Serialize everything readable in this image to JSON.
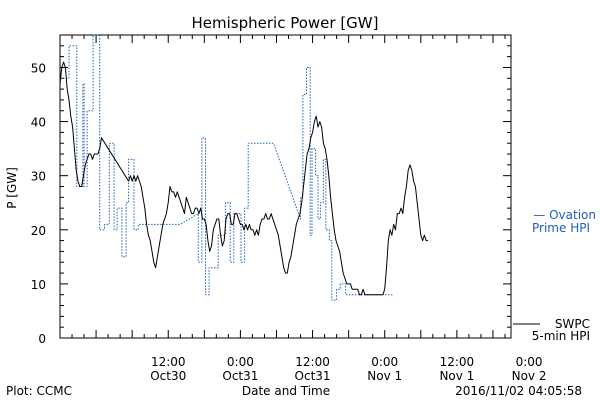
{
  "chart_data": {
    "type": "line",
    "title": "Hemispheric Power [GW]",
    "xlabel": "Date and Time",
    "ylabel": "P [GW]",
    "ylim": [
      0,
      56
    ],
    "yticks": [
      0,
      10,
      20,
      30,
      40,
      50
    ],
    "xlim": [
      0,
      75
    ],
    "xlim_note": "hours from 2016-10-29 18:00",
    "xticks": [
      {
        "x": 18,
        "l1": "12:00",
        "l2": "Oct30"
      },
      {
        "x": 30,
        "l1": "0:00",
        "l2": "Oct31"
      },
      {
        "x": 42,
        "l1": "12:00",
        "l2": "Oct31"
      },
      {
        "x": 54,
        "l1": "0:00",
        "l2": "Nov 1"
      },
      {
        "x": 66,
        "l1": "12:00",
        "l2": "Nov 1"
      },
      {
        "x": 78,
        "l1": "0:00",
        "l2": "Nov 2"
      }
    ],
    "series": [
      {
        "name": "SWPC 5-min HPI",
        "legend": [
          "SWPC",
          "5-min HPI"
        ],
        "color": "#000000",
        "style": "solid",
        "points": [
          [
            0,
            47
          ],
          [
            0.3,
            50
          ],
          [
            0.6,
            51
          ],
          [
            0.9,
            50
          ],
          [
            1.2,
            46
          ],
          [
            1.5,
            44
          ],
          [
            1.8,
            41
          ],
          [
            2.1,
            39
          ],
          [
            2.4,
            35
          ],
          [
            2.7,
            31
          ],
          [
            3.0,
            29
          ],
          [
            3.3,
            28
          ],
          [
            3.6,
            28
          ],
          [
            3.9,
            30
          ],
          [
            4.2,
            32
          ],
          [
            4.5,
            33
          ],
          [
            4.8,
            34
          ],
          [
            5.1,
            34
          ],
          [
            5.4,
            33
          ],
          [
            5.7,
            34
          ],
          [
            6.0,
            34
          ],
          [
            6.3,
            34
          ],
          [
            6.6,
            35
          ],
          [
            6.9,
            37
          ],
          [
            11.4,
            29
          ],
          [
            11.7,
            30
          ],
          [
            12.0,
            29
          ],
          [
            12.3,
            30
          ],
          [
            12.6,
            29
          ],
          [
            12.9,
            30
          ],
          [
            13.2,
            29
          ],
          [
            13.5,
            28
          ],
          [
            13.8,
            26
          ],
          [
            14.1,
            24
          ],
          [
            14.4,
            21
          ],
          [
            14.7,
            19
          ],
          [
            15.0,
            18
          ],
          [
            15.3,
            16
          ],
          [
            15.6,
            14
          ],
          [
            15.9,
            13
          ],
          [
            16.2,
            15
          ],
          [
            16.5,
            17
          ],
          [
            16.8,
            19
          ],
          [
            17.1,
            21
          ],
          [
            17.4,
            22
          ],
          [
            17.7,
            23
          ],
          [
            18.0,
            25
          ],
          [
            18.3,
            28
          ],
          [
            18.6,
            27
          ],
          [
            18.9,
            27
          ],
          [
            19.2,
            26
          ],
          [
            19.5,
            27
          ],
          [
            19.8,
            26
          ],
          [
            20.1,
            25
          ],
          [
            20.4,
            24
          ],
          [
            20.7,
            23
          ],
          [
            21.0,
            26
          ],
          [
            21.3,
            25
          ],
          [
            21.6,
            24
          ],
          [
            21.9,
            23
          ],
          [
            22.2,
            23
          ],
          [
            22.5,
            24
          ],
          [
            22.8,
            24
          ],
          [
            23.1,
            23
          ],
          [
            23.4,
            24
          ],
          [
            23.7,
            22
          ],
          [
            24.0,
            22
          ],
          [
            24.3,
            21
          ],
          [
            24.6,
            18
          ],
          [
            24.9,
            16
          ],
          [
            25.2,
            17
          ],
          [
            25.5,
            20
          ],
          [
            25.8,
            21
          ],
          [
            26.1,
            22
          ],
          [
            26.4,
            22
          ],
          [
            26.7,
            19
          ],
          [
            27.0,
            17
          ],
          [
            27.3,
            18
          ],
          [
            27.6,
            22
          ],
          [
            27.9,
            23
          ],
          [
            28.2,
            23
          ],
          [
            28.5,
            21
          ],
          [
            28.8,
            21
          ],
          [
            29.1,
            23
          ],
          [
            29.4,
            23
          ],
          [
            29.7,
            22
          ],
          [
            30.0,
            21
          ],
          [
            30.3,
            21
          ],
          [
            30.6,
            20
          ],
          [
            30.9,
            21
          ],
          [
            31.2,
            20
          ],
          [
            31.5,
            21
          ],
          [
            31.8,
            20
          ],
          [
            32.1,
            20
          ],
          [
            32.4,
            19
          ],
          [
            32.7,
            20
          ],
          [
            33.0,
            19
          ],
          [
            33.3,
            21
          ],
          [
            33.6,
            22
          ],
          [
            33.9,
            22
          ],
          [
            34.2,
            23
          ],
          [
            34.5,
            22
          ],
          [
            34.8,
            22
          ],
          [
            35.1,
            23
          ],
          [
            35.4,
            22
          ],
          [
            35.7,
            21
          ],
          [
            36.0,
            20
          ],
          [
            36.3,
            19
          ],
          [
            36.6,
            17
          ],
          [
            36.9,
            15
          ],
          [
            37.2,
            13
          ],
          [
            37.5,
            12
          ],
          [
            37.8,
            12
          ],
          [
            38.1,
            14
          ],
          [
            38.4,
            15
          ],
          [
            38.7,
            17
          ],
          [
            39.0,
            19
          ],
          [
            39.3,
            21
          ],
          [
            39.6,
            22
          ],
          [
            39.9,
            23
          ],
          [
            40.2,
            25
          ],
          [
            40.5,
            28
          ],
          [
            40.8,
            31
          ],
          [
            41.1,
            34
          ],
          [
            41.4,
            35
          ],
          [
            41.7,
            37
          ],
          [
            42.0,
            38
          ],
          [
            42.3,
            40
          ],
          [
            42.6,
            41
          ],
          [
            42.9,
            39
          ],
          [
            43.2,
            40
          ],
          [
            43.5,
            39
          ],
          [
            43.8,
            36
          ],
          [
            44.1,
            35
          ],
          [
            44.4,
            33
          ],
          [
            44.7,
            30
          ],
          [
            45.0,
            26
          ],
          [
            45.3,
            23
          ],
          [
            45.6,
            20
          ],
          [
            45.9,
            18
          ],
          [
            46.2,
            17
          ],
          [
            46.5,
            16
          ],
          [
            46.8,
            14
          ],
          [
            47.1,
            12
          ],
          [
            47.4,
            11
          ],
          [
            47.7,
            10
          ],
          [
            48.0,
            10
          ],
          [
            48.3,
            10
          ],
          [
            48.6,
            9
          ],
          [
            48.9,
            9
          ],
          [
            49.2,
            9
          ],
          [
            49.5,
            9
          ],
          [
            49.8,
            8
          ],
          [
            50.1,
            8
          ],
          [
            50.4,
            9
          ],
          [
            50.7,
            8
          ],
          [
            51.0,
            8
          ],
          [
            51.3,
            8
          ],
          [
            51.6,
            8
          ],
          [
            51.9,
            8
          ],
          [
            52.2,
            8
          ],
          [
            52.5,
            8
          ],
          [
            52.8,
            8
          ],
          [
            53.1,
            8
          ],
          [
            53.4,
            8
          ],
          [
            53.7,
            8
          ],
          [
            54.0,
            9
          ],
          [
            54.3,
            13
          ],
          [
            54.6,
            18
          ],
          [
            54.9,
            20
          ],
          [
            55.2,
            19
          ],
          [
            55.5,
            21
          ],
          [
            55.8,
            20
          ],
          [
            56.1,
            23
          ],
          [
            56.4,
            23
          ],
          [
            56.7,
            24
          ],
          [
            57.0,
            23
          ],
          [
            57.3,
            26
          ],
          [
            57.6,
            28
          ],
          [
            57.9,
            31
          ],
          [
            58.2,
            32
          ],
          [
            58.5,
            31
          ],
          [
            58.8,
            29
          ],
          [
            59.1,
            28
          ],
          [
            59.4,
            25
          ],
          [
            59.7,
            22
          ],
          [
            60.0,
            19
          ],
          [
            60.3,
            18
          ],
          [
            60.6,
            19
          ],
          [
            60.9,
            18
          ],
          [
            61.2,
            18
          ]
        ]
      },
      {
        "name": "Ovation Prime HPI",
        "legend": [
          "— Ovation",
          "Prime HPI"
        ],
        "color": "#1f5fbf",
        "style": "dotted",
        "points": [
          [
            0,
            48
          ],
          [
            1.5,
            48
          ],
          [
            1.5,
            54
          ],
          [
            2.8,
            54
          ],
          [
            2.8,
            28
          ],
          [
            3.8,
            28
          ],
          [
            3.8,
            47
          ],
          [
            4.0,
            47
          ],
          [
            4.0,
            28
          ],
          [
            4.5,
            28
          ],
          [
            4.5,
            42
          ],
          [
            5.5,
            42
          ],
          [
            5.5,
            56
          ],
          [
            6.6,
            56
          ],
          [
            6.6,
            20
          ],
          [
            7.4,
            20
          ],
          [
            7.4,
            21
          ],
          [
            8.2,
            21
          ],
          [
            8.2,
            36
          ],
          [
            9.0,
            36
          ],
          [
            9.0,
            20
          ],
          [
            9.5,
            20
          ],
          [
            9.5,
            24
          ],
          [
            10.3,
            24
          ],
          [
            10.3,
            15
          ],
          [
            11.0,
            15
          ],
          [
            11.0,
            25
          ],
          [
            11.4,
            25
          ],
          [
            11.4,
            33
          ],
          [
            12.3,
            33
          ],
          [
            12.3,
            20
          ],
          [
            13.0,
            20
          ],
          [
            13.0,
            21
          ],
          [
            16.0,
            21
          ],
          [
            20.0,
            21
          ],
          [
            23.0,
            23
          ],
          [
            23.0,
            14
          ],
          [
            23.6,
            14
          ],
          [
            23.6,
            37
          ],
          [
            24.2,
            37
          ],
          [
            24.2,
            8
          ],
          [
            24.8,
            8
          ],
          [
            24.8,
            13
          ],
          [
            26.3,
            13
          ],
          [
            26.3,
            19
          ],
          [
            27.5,
            19
          ],
          [
            27.5,
            25
          ],
          [
            28.3,
            25
          ],
          [
            28.3,
            14
          ],
          [
            28.9,
            14
          ],
          [
            28.9,
            23
          ],
          [
            30.1,
            23
          ],
          [
            30.1,
            14
          ],
          [
            30.7,
            14
          ],
          [
            30.7,
            24
          ],
          [
            31.3,
            24
          ],
          [
            31.3,
            36
          ],
          [
            35.5,
            36
          ],
          [
            40.0,
            22
          ],
          [
            40.0,
            26
          ],
          [
            40.4,
            26
          ],
          [
            40.4,
            45
          ],
          [
            41.0,
            45
          ],
          [
            41.0,
            50
          ],
          [
            41.6,
            50
          ],
          [
            41.6,
            19
          ],
          [
            41.9,
            19
          ],
          [
            41.9,
            35
          ],
          [
            42.5,
            35
          ],
          [
            42.5,
            30
          ],
          [
            42.9,
            30
          ],
          [
            42.9,
            22
          ],
          [
            43.3,
            22
          ],
          [
            43.3,
            25
          ],
          [
            43.8,
            25
          ],
          [
            43.8,
            33
          ],
          [
            44.2,
            33
          ],
          [
            44.2,
            20
          ],
          [
            44.8,
            20
          ],
          [
            44.8,
            18
          ],
          [
            45.2,
            18
          ],
          [
            45.2,
            7
          ],
          [
            46.0,
            7
          ],
          [
            46.0,
            9
          ],
          [
            46.6,
            9
          ],
          [
            46.6,
            10
          ],
          [
            47.5,
            10
          ],
          [
            47.5,
            8
          ],
          [
            55.5,
            8
          ]
        ]
      }
    ]
  },
  "footer": {
    "plot_credit": "Plot: CCMC",
    "xlabel": "Date and Time",
    "timestamp": "2016/11/02 04:05:58"
  }
}
